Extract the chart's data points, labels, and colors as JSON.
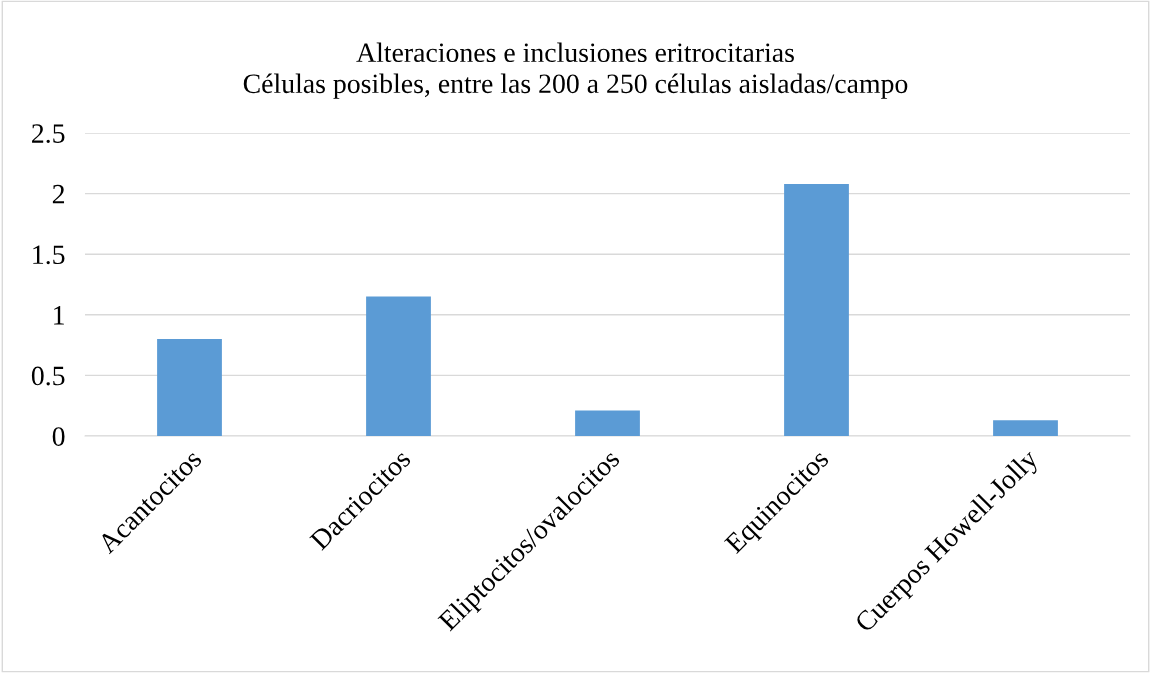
{
  "chart_data": {
    "type": "bar",
    "title": "Alteraciones e inclusiones eritrocitarias\nCélulas posibles, entre las 200 a 250 células aisladas/campo",
    "categories": [
      "Acantocitos",
      "Dacriocitos",
      "Eliptocitos/ovalocitos",
      "Equinocitos",
      "Cuerpos Howell-Jolly"
    ],
    "values": [
      0.8,
      1.15,
      0.21,
      2.08,
      0.13
    ],
    "color": "#5b9bd5",
    "ylim": [
      0,
      2.5
    ],
    "yticks": [
      0,
      {
        "value": 0.5,
        "label": "0.5"
      },
      1,
      {
        "value": 1.5,
        "label": "1.5"
      },
      2,
      {
        "value": 2.5,
        "label": "2.5"
      }
    ],
    "grid": "y"
  }
}
